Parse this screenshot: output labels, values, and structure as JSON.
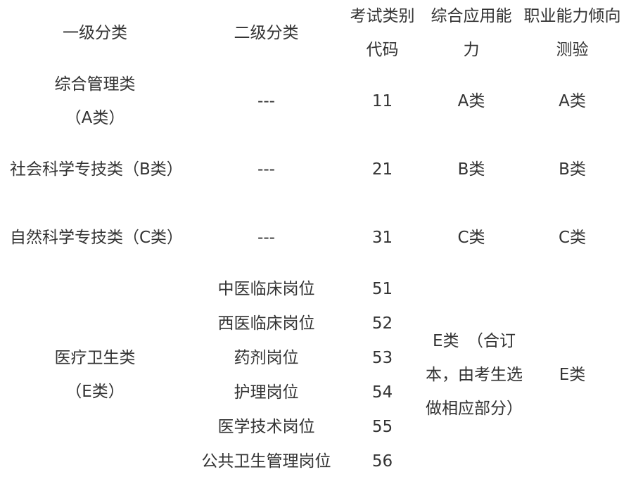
{
  "headers": [
    "一级分类",
    "二级分类",
    "考试类别代码",
    "综合应用能力",
    "职业能力倾向测验"
  ],
  "rows": [
    {
      "level1": "综合管理类（A类）",
      "level2": "---",
      "code": "11",
      "applied": "A类",
      "aptitude": "A类"
    },
    {
      "level1": "社会科学专技类（B类）",
      "level2": "---",
      "code": "21",
      "applied": "B类",
      "aptitude": "B类"
    },
    {
      "level1": "自然科学专技类（C类）",
      "level2": "---",
      "code": "31",
      "applied": "C类",
      "aptitude": "C类"
    }
  ],
  "medical": {
    "level1": "医疗卫生类（E类）",
    "applied": "E类　（合订本，由考生选做相应部分）",
    "aptitude": "E类",
    "subs": [
      {
        "level2": "中医临床岗位",
        "code": "51"
      },
      {
        "level2": "西医临床岗位",
        "code": "52"
      },
      {
        "level2": "药剂岗位",
        "code": "53"
      },
      {
        "level2": "护理岗位",
        "code": "54"
      },
      {
        "level2": "医学技术岗位",
        "code": "55"
      },
      {
        "level2": "公共卫生管理岗位",
        "code": "56"
      }
    ]
  }
}
